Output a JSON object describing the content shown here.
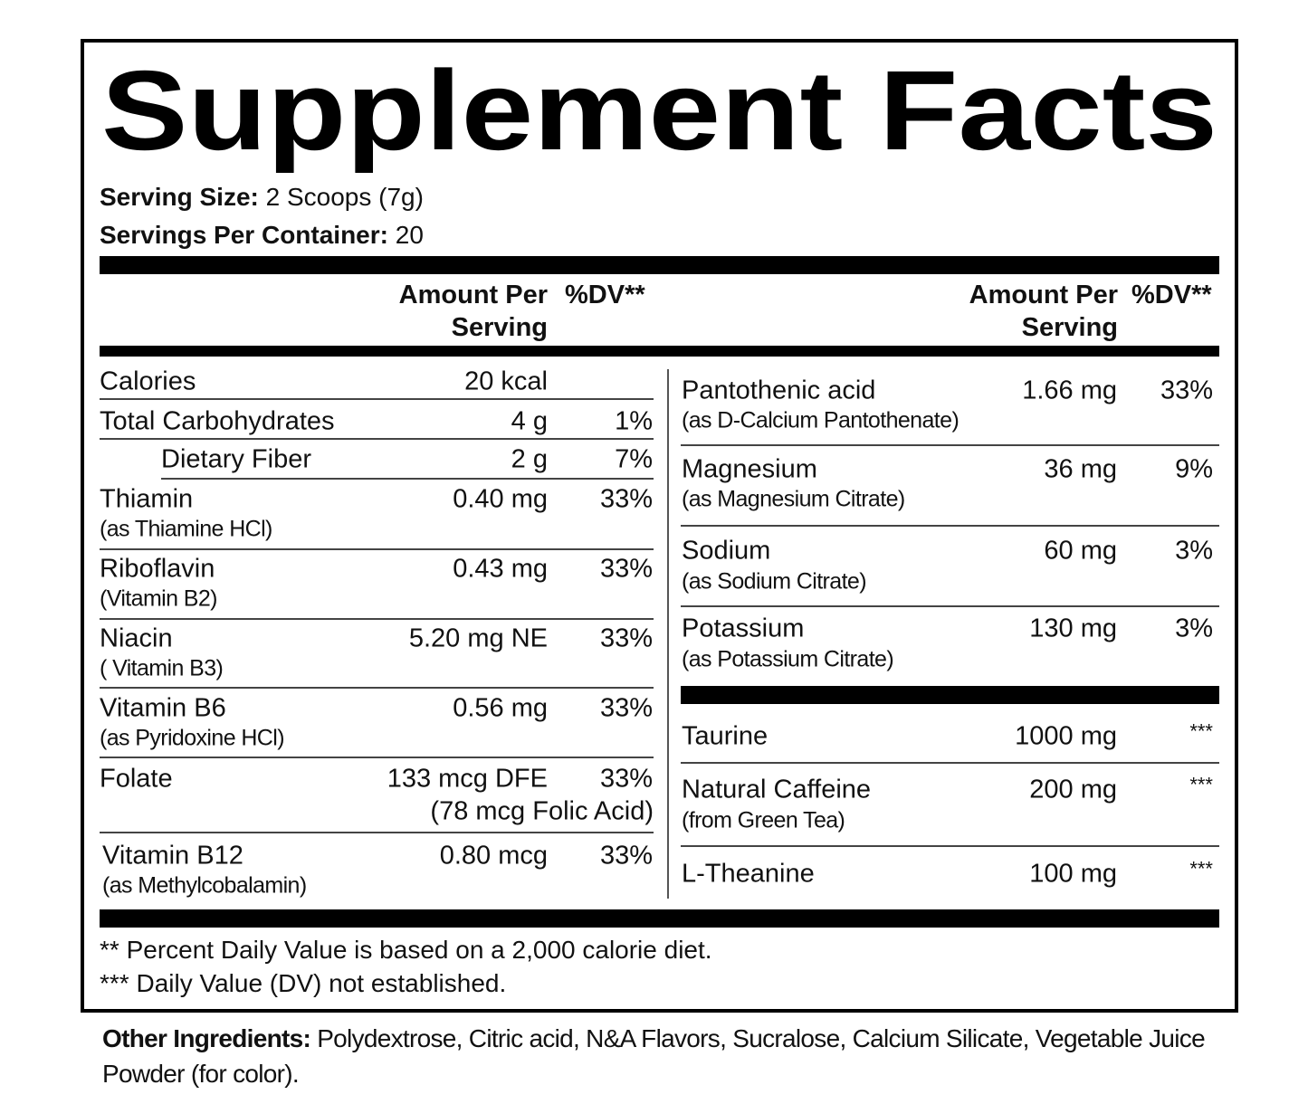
{
  "title": "Supplement Facts",
  "serving": [
    {
      "label": "Serving Size:",
      "value": "2 Scoops (7g)"
    },
    {
      "label": "Servings Per Container:",
      "value": "20"
    }
  ],
  "columns": [
    {
      "amount": "Amount Per Serving",
      "dv": "%DV**"
    },
    {
      "amount": "Amount Per Serving",
      "dv": "%DV**"
    }
  ],
  "left_rows": [
    {
      "name": "Calories",
      "amount": "20 kcal"
    },
    {
      "name": "Total Carbohydrates",
      "amount": "4 g",
      "dv": "1%"
    },
    {
      "name": "Dietary Fiber",
      "amount": "2 g",
      "dv": "7%"
    },
    {
      "name": "Thiamin",
      "sub": "(as Thiamine HCl)",
      "amount": "0.40 mg",
      "dv": "33%"
    },
    {
      "name": "Riboflavin",
      "sub": "(Vitamin B2)",
      "amount": "0.43 mg",
      "dv": "33%"
    },
    {
      "name": "Niacin",
      "sub": "( Vitamin B3)",
      "amount": "5.20 mg NE",
      "dv": "33%"
    },
    {
      "name": "Vitamin B6",
      "sub": "(as Pyridoxine HCl)",
      "amount": "0.56 mg",
      "dv": "33%"
    },
    {
      "name": "Folate",
      "amount": "133 mcg DFE",
      "dv": "33%",
      "extra": "(78 mcg Folic Acid)"
    },
    {
      "name": "Vitamin B12",
      "sub": "(as Methylcobalamin)",
      "amount": "0.80 mcg",
      "dv": "33%"
    }
  ],
  "right_rows": [
    {
      "name": "Pantothenic acid",
      "sub": "(as D-Calcium Pantothenate)",
      "amount": "1.66 mg",
      "dv": "33%"
    },
    {
      "name": "Magnesium",
      "sub": "(as Magnesium Citrate)",
      "amount": "36 mg",
      "dv": "9%"
    },
    {
      "name": "Sodium",
      "sub": "(as Sodium Citrate)",
      "amount": "60 mg",
      "dv": "3%"
    },
    {
      "name": "Potassium",
      "sub": "(as Potassium Citrate)",
      "amount": "130 mg",
      "dv": "3%"
    },
    {
      "name": "Taurine",
      "amount": "1000 mg",
      "dv": "***"
    },
    {
      "name": "Natural Caffeine",
      "sub": "(from Green Tea)",
      "amount": "200 mg",
      "dv": "***"
    },
    {
      "name": "L-Theanine",
      "amount": "100 mg",
      "dv": "***"
    }
  ],
  "footnotes": [
    "** Percent Daily Value is based on a 2,000 calorie diet.",
    "*** Daily Value (DV) not established."
  ],
  "other_ingredients": {
    "label": "Other Ingredients:",
    "text": "Polydextrose, Citric acid, N&A Flavors, Sucralose, Calcium Silicate, Vegetable Juice Powder (for color)."
  }
}
